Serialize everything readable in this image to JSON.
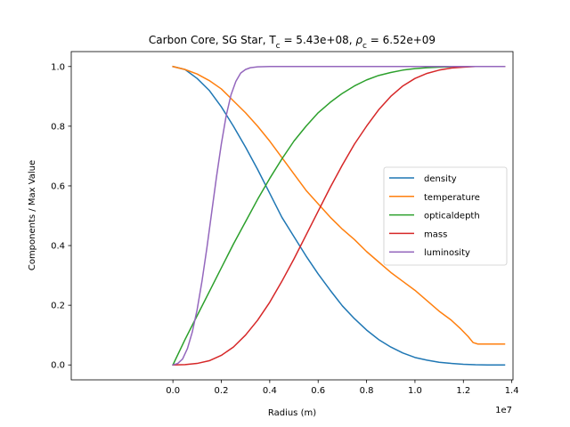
{
  "chart_data": {
    "type": "line",
    "title": {
      "prefix": "Carbon Core, SG Star, T",
      "t_sub": "c",
      "t_value": " = 5.43e+08, ",
      "rho": "ρ",
      "rho_sub": "c",
      "rho_value": " = 6.52e+09"
    },
    "xlabel": "Radius (m)",
    "ylabel": "Components / Max Value",
    "x_offset_text": "1e7",
    "xlim": [
      -4200000,
      14050000
    ],
    "ylim": [
      -0.05,
      1.05
    ],
    "x_ticks": [
      0,
      2000000,
      4000000,
      6000000,
      8000000,
      10000000,
      12000000,
      14000000
    ],
    "x_tick_labels": [
      "0.0",
      "0.2",
      "0.4",
      "0.6",
      "0.8",
      "1.0",
      "1.2",
      "1.4"
    ],
    "y_ticks": [
      0,
      0.2,
      0.4,
      0.6,
      0.8,
      1.0
    ],
    "y_tick_labels": [
      "0.0",
      "0.2",
      "0.4",
      "0.6",
      "0.8",
      "1.0"
    ],
    "grid": false,
    "legend_position": "center-right",
    "series": [
      {
        "name": "density",
        "color": "#1f77b4",
        "x": [
          0,
          500000,
          1000000,
          1500000,
          2000000,
          2500000,
          3000000,
          3500000,
          4000000,
          4500000,
          5000000,
          5500000,
          6000000,
          6500000,
          7000000,
          7500000,
          8000000,
          8500000,
          9000000,
          9500000,
          10000000,
          10500000,
          11000000,
          11500000,
          12000000,
          12500000,
          13000000,
          13500000,
          13700000
        ],
        "y": [
          1.0,
          0.99,
          0.96,
          0.92,
          0.865,
          0.8,
          0.73,
          0.655,
          0.575,
          0.495,
          0.43,
          0.365,
          0.305,
          0.25,
          0.198,
          0.155,
          0.117,
          0.085,
          0.06,
          0.04,
          0.025,
          0.016,
          0.009,
          0.005,
          0.002,
          0.0005,
          0.0,
          0.0,
          0.0
        ]
      },
      {
        "name": "temperature",
        "color": "#ff7f0e",
        "x": [
          0,
          500000,
          1000000,
          1500000,
          2000000,
          2500000,
          3000000,
          3500000,
          4000000,
          4500000,
          5000000,
          5500000,
          6000000,
          6500000,
          7000000,
          7500000,
          8000000,
          8500000,
          9000000,
          9500000,
          10000000,
          10500000,
          11000000,
          11500000,
          11900000,
          12200000,
          12400000,
          12600000,
          13000000,
          13500000,
          13700000
        ],
        "y": [
          1.0,
          0.99,
          0.975,
          0.953,
          0.925,
          0.885,
          0.845,
          0.8,
          0.75,
          0.695,
          0.64,
          0.585,
          0.54,
          0.495,
          0.455,
          0.42,
          0.38,
          0.345,
          0.31,
          0.28,
          0.25,
          0.215,
          0.18,
          0.15,
          0.12,
          0.095,
          0.075,
          0.07,
          0.07,
          0.07,
          0.07
        ]
      },
      {
        "name": "opticaldepth",
        "color": "#2ca02c",
        "x": [
          0,
          500000,
          1000000,
          1500000,
          2000000,
          2500000,
          3000000,
          3500000,
          4000000,
          4500000,
          5000000,
          5500000,
          6000000,
          6500000,
          7000000,
          7500000,
          8000000,
          8500000,
          9000000,
          9500000,
          10000000,
          10500000,
          11000000,
          11500000,
          12000000,
          12500000,
          13000000,
          13500000,
          13700000
        ],
        "y": [
          0.0,
          0.085,
          0.165,
          0.245,
          0.325,
          0.405,
          0.48,
          0.555,
          0.625,
          0.69,
          0.75,
          0.8,
          0.845,
          0.88,
          0.91,
          0.935,
          0.955,
          0.97,
          0.98,
          0.988,
          0.993,
          0.996,
          0.998,
          0.999,
          1.0,
          1.0,
          1.0,
          1.0,
          1.0
        ]
      },
      {
        "name": "mass",
        "color": "#d62728",
        "x": [
          0,
          500000,
          1000000,
          1500000,
          2000000,
          2500000,
          3000000,
          3500000,
          4000000,
          4500000,
          5000000,
          5500000,
          6000000,
          6500000,
          7000000,
          7500000,
          8000000,
          8500000,
          9000000,
          9500000,
          10000000,
          10500000,
          11000000,
          11500000,
          12000000,
          12500000,
          13000000,
          13500000,
          13700000
        ],
        "y": [
          0.0,
          0.001,
          0.005,
          0.014,
          0.032,
          0.06,
          0.1,
          0.15,
          0.21,
          0.28,
          0.355,
          0.435,
          0.515,
          0.595,
          0.67,
          0.74,
          0.8,
          0.855,
          0.9,
          0.935,
          0.96,
          0.977,
          0.988,
          0.995,
          0.998,
          1.0,
          1.0,
          1.0,
          1.0
        ]
      },
      {
        "name": "luminosity",
        "color": "#9467bd",
        "x": [
          0,
          200000,
          400000,
          600000,
          800000,
          1000000,
          1200000,
          1400000,
          1600000,
          1800000,
          2000000,
          2200000,
          2400000,
          2600000,
          2800000,
          3000000,
          3200000,
          3500000,
          4000000,
          5000000,
          7000000,
          10000000,
          13700000
        ],
        "y": [
          0.0,
          0.005,
          0.02,
          0.055,
          0.11,
          0.185,
          0.28,
          0.39,
          0.51,
          0.63,
          0.74,
          0.835,
          0.905,
          0.95,
          0.978,
          0.99,
          0.996,
          0.999,
          1.0,
          1.0,
          1.0,
          1.0,
          1.0
        ]
      }
    ]
  }
}
